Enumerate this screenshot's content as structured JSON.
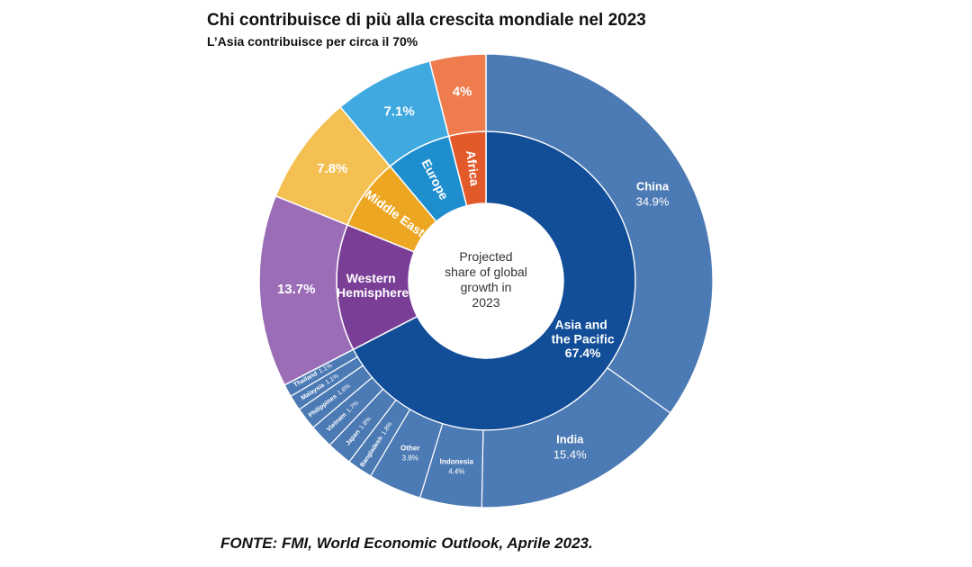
{
  "chart_data": {
    "type": "sunburst",
    "title": "Chi contribuisce di più alla crescita mondiale nel 2023",
    "subtitle": "L’Asia contribuisce per circa il 70%",
    "source": "FONTE: FMI, World Economic Outlook, Aprile 2023.",
    "center_label": [
      "Projected",
      "share of global",
      "growth in",
      "2023"
    ],
    "regions": [
      {
        "name": "Asia and the Pacific",
        "value": 67.4,
        "value_label": "67.4%",
        "color": "#124d97",
        "outer_color": "#4c7ab4",
        "children": [
          {
            "name": "China",
            "value": 34.9,
            "value_label": "34.9%"
          },
          {
            "name": "India",
            "value": 15.4,
            "value_label": "15.4%"
          },
          {
            "name": "Indonesia",
            "value": 4.4,
            "value_label": "4.4%"
          },
          {
            "name": "Other",
            "value": 3.8,
            "value_label": "3.8%"
          },
          {
            "name": "Bangladesh",
            "value": 1.8,
            "value_label": "1.8%"
          },
          {
            "name": "Japan",
            "value": 1.8,
            "value_label": "1.8%"
          },
          {
            "name": "Vietnam",
            "value": 1.7,
            "value_label": "1.7%"
          },
          {
            "name": "Philippines",
            "value": 1.6,
            "value_label": "1.6%"
          },
          {
            "name": "Malaysia",
            "value": 1.1,
            "value_label": "1.1%"
          },
          {
            "name": "Thailand",
            "value": 1.1,
            "value_label": "1.1%"
          }
        ]
      },
      {
        "name": "Western Hemisphere",
        "value": 13.7,
        "value_label": "13.7%",
        "color": "#7a3e97",
        "outer_color": "#9a6db6"
      },
      {
        "name": "Middle East",
        "value": 7.8,
        "value_label": "7.8%",
        "color": "#eca621",
        "outer_color": "#f4c052"
      },
      {
        "name": "Europe",
        "value": 7.1,
        "value_label": "7.1%",
        "color": "#1e8ecf",
        "outer_color": "#3fa9e0"
      },
      {
        "name": "Africa",
        "value": 4,
        "value_label": "4%",
        "color": "#e2592a",
        "outer_color": "#ee7c4d"
      }
    ]
  }
}
